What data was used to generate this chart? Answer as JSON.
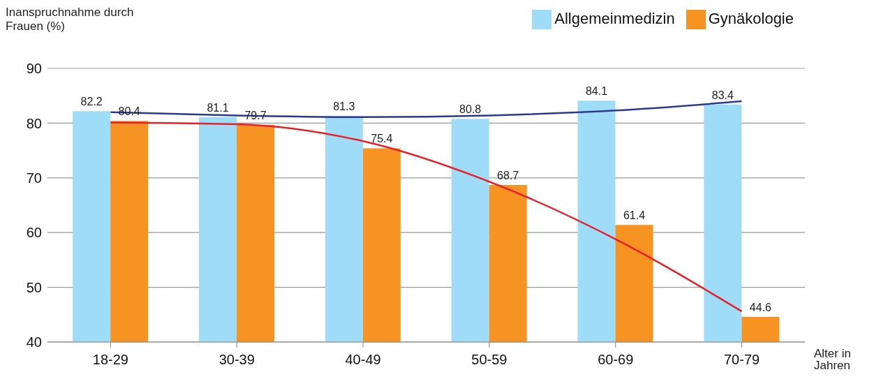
{
  "chart_data": {
    "type": "bar",
    "ylabel": "Inanspruchnahme durch Frauen (%)",
    "xlabel": "Alter in Jahren",
    "categories": [
      "18-29",
      "30-39",
      "40-49",
      "50-59",
      "60-69",
      "70-79"
    ],
    "series": [
      {
        "name": "Allgemeinmedizin",
        "color": "#9fdcf7",
        "values": [
          82.2,
          81.1,
          81.3,
          80.8,
          84.1,
          83.4
        ],
        "value_labels": [
          "82.2",
          "81.1",
          "81.3",
          "80.8",
          "84.1",
          "83.4"
        ]
      },
      {
        "name": "Gynäkologie",
        "color": "#f69322",
        "values": [
          80.4,
          79.7,
          75.4,
          68.7,
          61.4,
          44.6
        ],
        "value_labels": [
          "80.4",
          "79.7",
          "75.4",
          "68.7",
          "61.4",
          "44.6"
        ]
      },
      {
        "type": "line",
        "color": "#2b3a8f",
        "values": [
          82.0,
          81.4,
          81.1,
          81.4,
          82.3,
          84.0
        ]
      },
      {
        "type": "line",
        "color": "#e8202a",
        "values": [
          80.1,
          79.8,
          76.7,
          69.3,
          58.8,
          45.6
        ]
      }
    ],
    "ylim": [
      40,
      90
    ],
    "yticks": [
      40,
      50,
      60,
      70,
      80,
      90
    ],
    "grid": "y",
    "legend": "top right",
    "marker": "none"
  }
}
